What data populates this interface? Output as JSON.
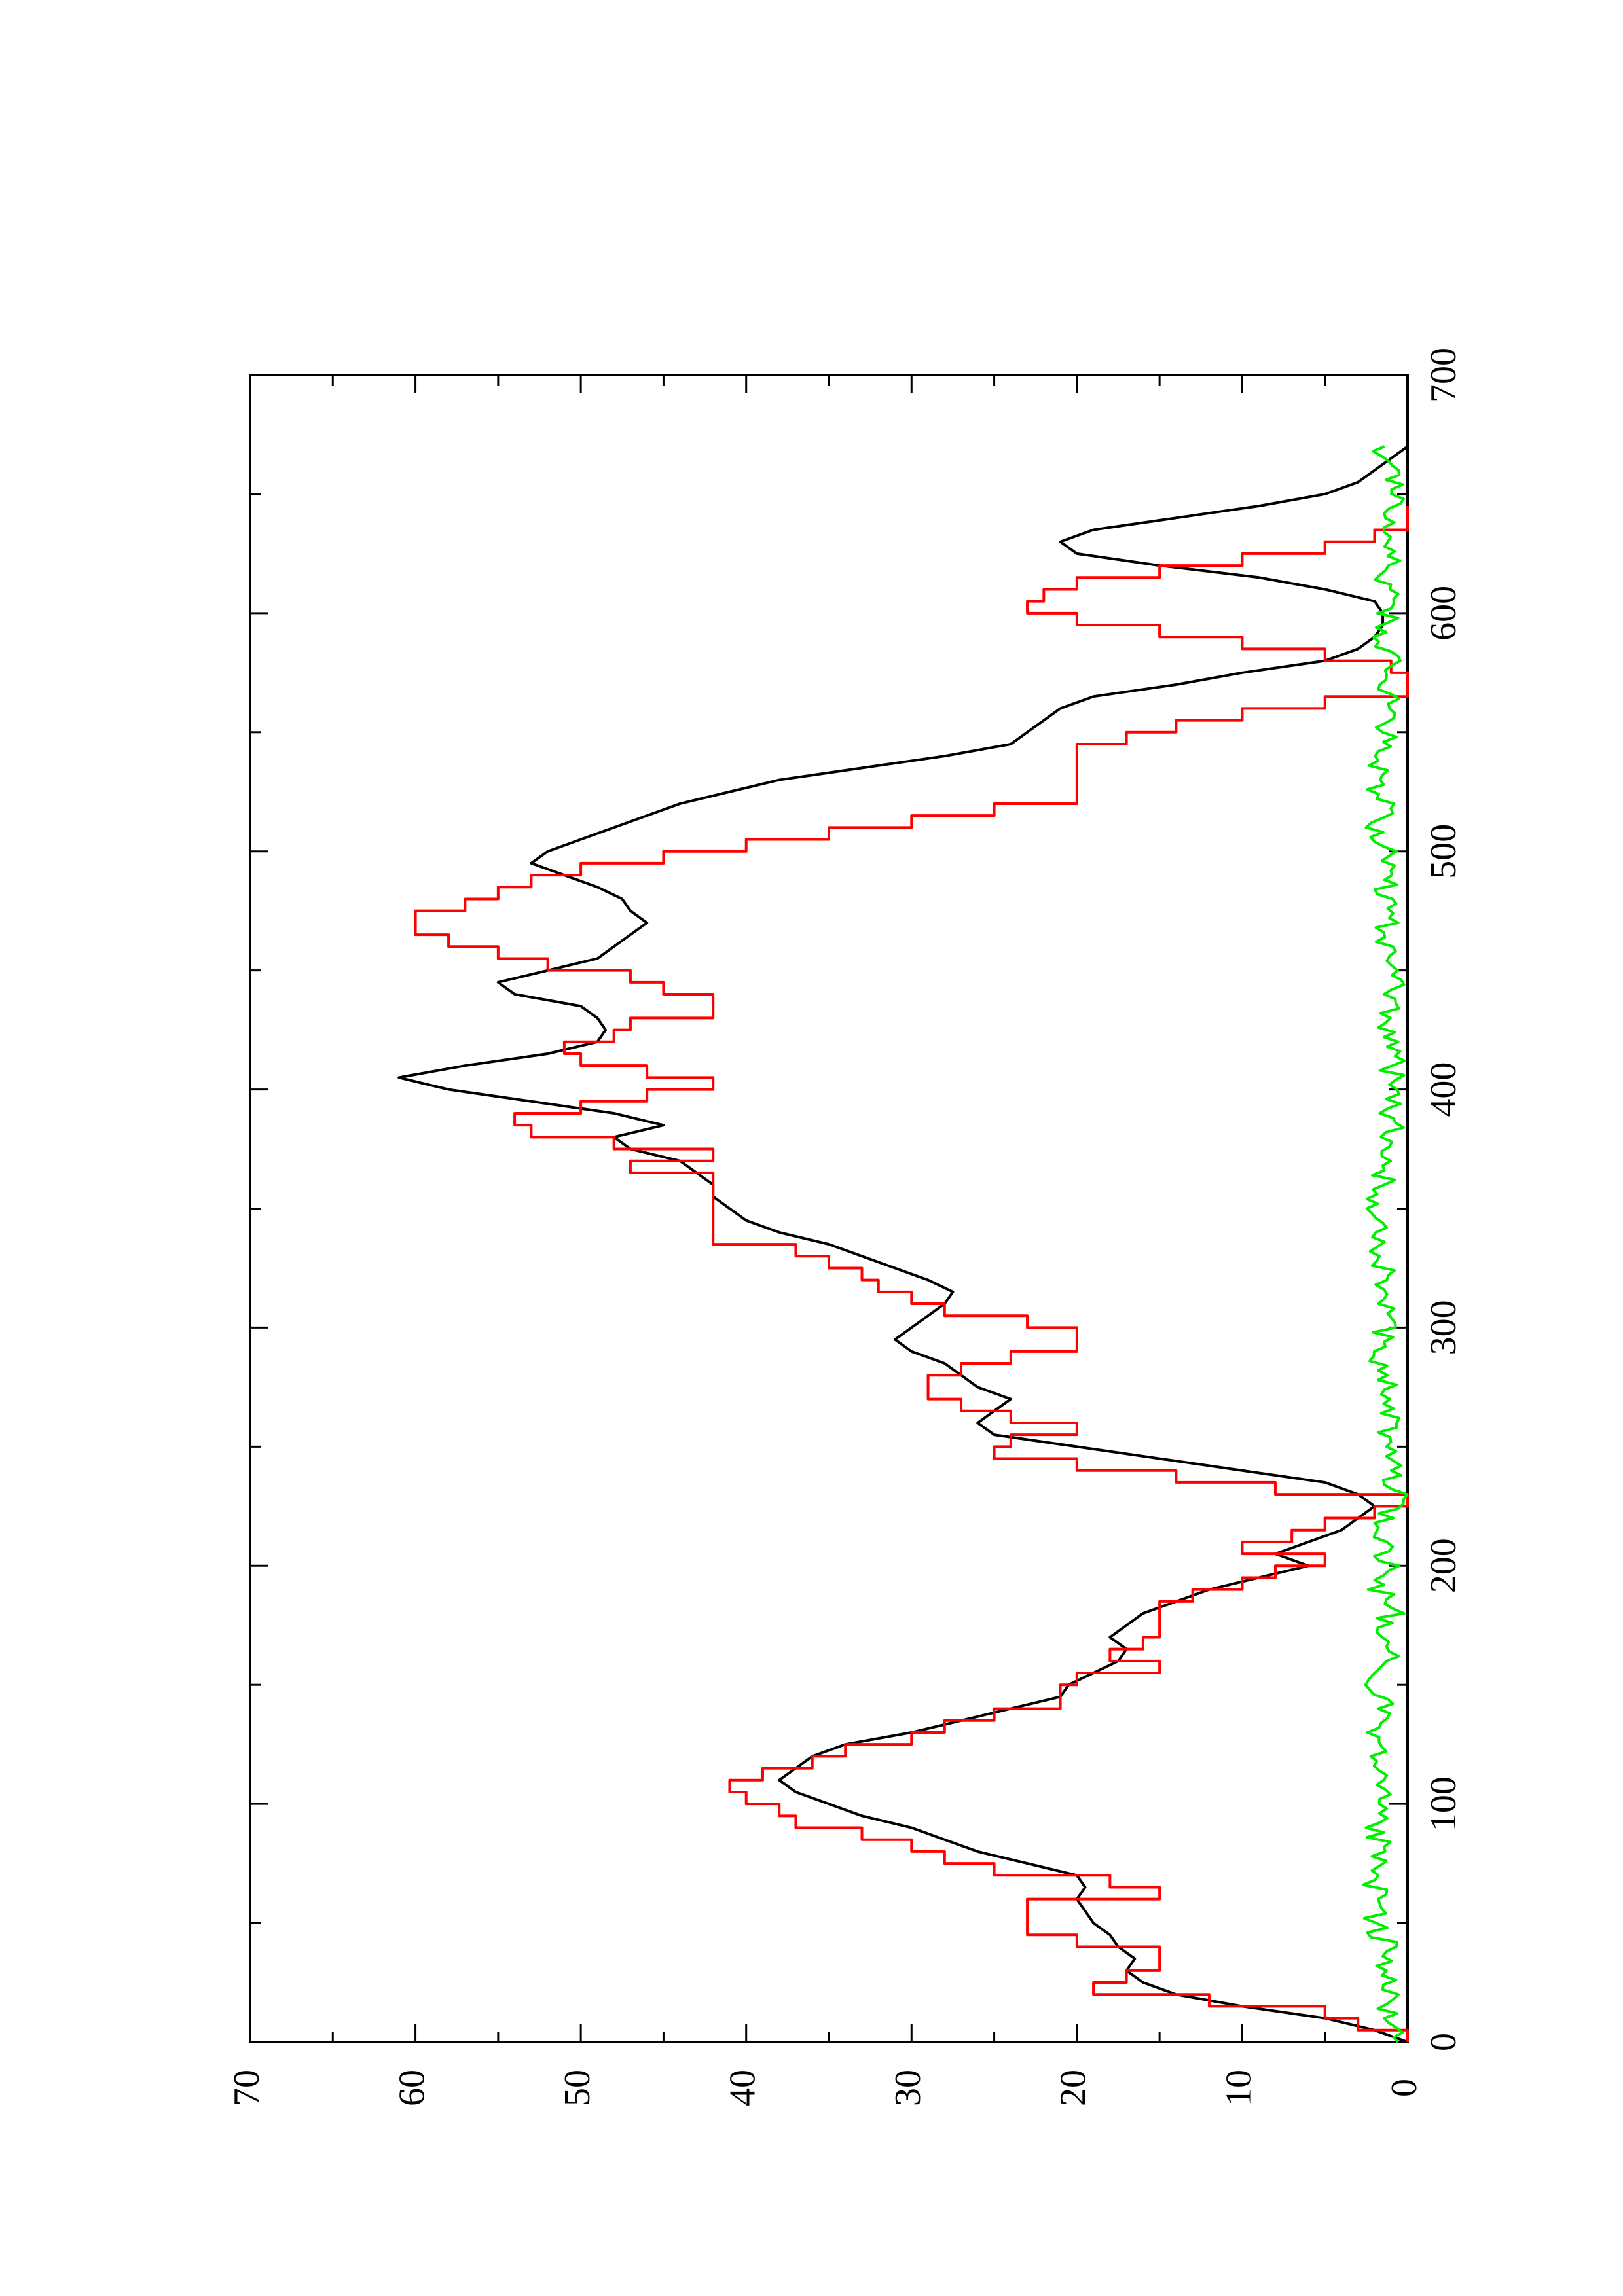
{
  "chart_data": {
    "type": "line",
    "orientation": "rotated-90",
    "title": "",
    "xlabel": "",
    "ylabel": "",
    "xlim": [
      0,
      700
    ],
    "ylim": [
      0,
      70
    ],
    "x_ticks": [
      0,
      100,
      200,
      300,
      400,
      500,
      600,
      700
    ],
    "y_ticks": [
      0,
      10,
      20,
      30,
      40,
      50,
      60,
      70
    ],
    "grid": false,
    "legend": "none",
    "series": [
      {
        "color": "#000000",
        "style": "smooth",
        "points": [
          [
            0,
            0
          ],
          [
            5,
            2
          ],
          [
            10,
            5
          ],
          [
            15,
            10
          ],
          [
            20,
            14
          ],
          [
            25,
            16
          ],
          [
            30,
            17
          ],
          [
            35,
            16.5
          ],
          [
            40,
            17.5
          ],
          [
            45,
            18
          ],
          [
            50,
            19
          ],
          [
            55,
            19.5
          ],
          [
            60,
            20
          ],
          [
            65,
            19.5
          ],
          [
            70,
            20
          ],
          [
            75,
            23
          ],
          [
            80,
            26
          ],
          [
            85,
            28
          ],
          [
            90,
            30
          ],
          [
            95,
            33
          ],
          [
            100,
            35
          ],
          [
            105,
            37
          ],
          [
            110,
            38
          ],
          [
            115,
            37
          ],
          [
            120,
            36
          ],
          [
            125,
            34
          ],
          [
            130,
            30
          ],
          [
            135,
            27
          ],
          [
            140,
            24
          ],
          [
            145,
            21
          ],
          [
            150,
            20.5
          ],
          [
            155,
            19
          ],
          [
            160,
            17.5
          ],
          [
            165,
            17
          ],
          [
            170,
            18
          ],
          [
            175,
            17
          ],
          [
            180,
            16
          ],
          [
            185,
            14
          ],
          [
            190,
            12
          ],
          [
            195,
            9
          ],
          [
            200,
            6
          ],
          [
            205,
            8
          ],
          [
            210,
            6
          ],
          [
            215,
            4
          ],
          [
            220,
            3
          ],
          [
            225,
            2
          ],
          [
            230,
            3
          ],
          [
            235,
            5
          ],
          [
            240,
            10
          ],
          [
            245,
            15
          ],
          [
            250,
            20
          ],
          [
            255,
            25
          ],
          [
            260,
            26
          ],
          [
            265,
            25
          ],
          [
            270,
            24
          ],
          [
            275,
            26
          ],
          [
            280,
            27
          ],
          [
            285,
            28
          ],
          [
            290,
            30
          ],
          [
            295,
            31
          ],
          [
            300,
            30
          ],
          [
            305,
            29
          ],
          [
            310,
            28
          ],
          [
            315,
            27.5
          ],
          [
            320,
            29
          ],
          [
            325,
            31
          ],
          [
            330,
            33
          ],
          [
            335,
            35
          ],
          [
            340,
            38
          ],
          [
            345,
            40
          ],
          [
            350,
            41
          ],
          [
            355,
            42
          ],
          [
            360,
            42
          ],
          [
            365,
            43
          ],
          [
            370,
            44
          ],
          [
            375,
            47
          ],
          [
            380,
            48
          ],
          [
            385,
            45
          ],
          [
            390,
            48
          ],
          [
            395,
            53
          ],
          [
            400,
            58
          ],
          [
            405,
            61
          ],
          [
            410,
            57
          ],
          [
            415,
            52
          ],
          [
            420,
            49
          ],
          [
            425,
            48.5
          ],
          [
            430,
            49
          ],
          [
            435,
            50
          ],
          [
            440,
            54
          ],
          [
            445,
            55
          ],
          [
            450,
            52
          ],
          [
            455,
            49
          ],
          [
            460,
            48
          ],
          [
            465,
            47
          ],
          [
            470,
            46
          ],
          [
            475,
            47
          ],
          [
            480,
            47.5
          ],
          [
            485,
            49
          ],
          [
            490,
            51
          ],
          [
            495,
            53
          ],
          [
            500,
            52
          ],
          [
            505,
            50
          ],
          [
            510,
            48
          ],
          [
            515,
            46
          ],
          [
            520,
            44
          ],
          [
            525,
            41
          ],
          [
            530,
            38
          ],
          [
            535,
            33
          ],
          [
            540,
            28
          ],
          [
            545,
            24
          ],
          [
            550,
            23
          ],
          [
            555,
            22
          ],
          [
            560,
            21
          ],
          [
            565,
            19
          ],
          [
            570,
            14
          ],
          [
            575,
            10
          ],
          [
            580,
            5
          ],
          [
            585,
            3
          ],
          [
            590,
            2
          ],
          [
            595,
            1.5
          ],
          [
            600,
            1.5
          ],
          [
            605,
            2
          ],
          [
            610,
            5
          ],
          [
            615,
            9
          ],
          [
            620,
            15
          ],
          [
            625,
            20
          ],
          [
            630,
            21
          ],
          [
            635,
            19
          ],
          [
            640,
            14
          ],
          [
            645,
            9
          ],
          [
            650,
            5
          ],
          [
            655,
            3
          ],
          [
            660,
            2
          ],
          [
            665,
            1
          ],
          [
            670,
            0
          ]
        ]
      },
      {
        "color": "#ff0000",
        "style": "step",
        "points": [
          [
            0,
            0
          ],
          [
            5,
            3
          ],
          [
            10,
            5
          ],
          [
            15,
            12
          ],
          [
            20,
            19
          ],
          [
            25,
            17
          ],
          [
            30,
            15
          ],
          [
            35,
            15
          ],
          [
            40,
            20
          ],
          [
            45,
            23
          ],
          [
            50,
            23
          ],
          [
            55,
            23
          ],
          [
            60,
            15
          ],
          [
            65,
            18
          ],
          [
            70,
            25
          ],
          [
            75,
            28
          ],
          [
            80,
            30
          ],
          [
            85,
            33
          ],
          [
            90,
            37
          ],
          [
            95,
            38
          ],
          [
            100,
            40
          ],
          [
            105,
            41
          ],
          [
            110,
            39
          ],
          [
            115,
            36
          ],
          [
            120,
            34
          ],
          [
            125,
            30
          ],
          [
            130,
            28
          ],
          [
            135,
            25
          ],
          [
            140,
            21
          ],
          [
            145,
            21
          ],
          [
            150,
            20
          ],
          [
            155,
            15
          ],
          [
            160,
            18
          ],
          [
            165,
            16
          ],
          [
            170,
            15
          ],
          [
            175,
            15
          ],
          [
            180,
            15
          ],
          [
            185,
            13
          ],
          [
            190,
            10
          ],
          [
            195,
            8
          ],
          [
            200,
            5
          ],
          [
            205,
            10
          ],
          [
            210,
            7
          ],
          [
            215,
            5
          ],
          [
            220,
            2
          ],
          [
            225,
            0
          ],
          [
            230,
            8
          ],
          [
            235,
            14
          ],
          [
            240,
            20
          ],
          [
            245,
            25
          ],
          [
            250,
            24
          ],
          [
            255,
            20
          ],
          [
            260,
            24
          ],
          [
            265,
            27
          ],
          [
            270,
            29
          ],
          [
            275,
            29
          ],
          [
            280,
            27
          ],
          [
            285,
            24
          ],
          [
            290,
            20
          ],
          [
            295,
            20
          ],
          [
            300,
            23
          ],
          [
            305,
            28
          ],
          [
            310,
            30
          ],
          [
            315,
            32
          ],
          [
            320,
            33
          ],
          [
            325,
            35
          ],
          [
            330,
            37
          ],
          [
            335,
            42
          ],
          [
            340,
            42
          ],
          [
            345,
            42
          ],
          [
            350,
            42
          ],
          [
            355,
            42
          ],
          [
            360,
            42
          ],
          [
            365,
            47
          ],
          [
            370,
            42
          ],
          [
            375,
            48
          ],
          [
            380,
            53
          ],
          [
            385,
            54
          ],
          [
            390,
            50
          ],
          [
            395,
            46
          ],
          [
            400,
            42
          ],
          [
            405,
            46
          ],
          [
            410,
            50
          ],
          [
            415,
            51
          ],
          [
            420,
            48
          ],
          [
            425,
            47
          ],
          [
            430,
            42
          ],
          [
            435,
            42
          ],
          [
            440,
            45
          ],
          [
            445,
            47
          ],
          [
            450,
            52
          ],
          [
            455,
            55
          ],
          [
            460,
            58
          ],
          [
            465,
            60
          ],
          [
            470,
            60
          ],
          [
            475,
            57
          ],
          [
            480,
            55
          ],
          [
            485,
            53
          ],
          [
            490,
            50
          ],
          [
            495,
            45
          ],
          [
            500,
            40
          ],
          [
            505,
            35
          ],
          [
            510,
            30
          ],
          [
            515,
            25
          ],
          [
            520,
            20
          ],
          [
            525,
            20
          ],
          [
            530,
            20
          ],
          [
            535,
            20
          ],
          [
            540,
            20
          ],
          [
            545,
            17
          ],
          [
            550,
            14
          ],
          [
            555,
            10
          ],
          [
            560,
            5
          ],
          [
            565,
            0
          ],
          [
            570,
            0
          ],
          [
            575,
            1
          ],
          [
            580,
            5
          ],
          [
            585,
            10
          ],
          [
            590,
            15
          ],
          [
            595,
            20
          ],
          [
            600,
            23
          ],
          [
            605,
            22
          ],
          [
            610,
            20
          ],
          [
            615,
            15
          ],
          [
            620,
            10
          ],
          [
            625,
            5
          ],
          [
            630,
            2
          ],
          [
            635,
            0
          ],
          [
            640,
            0
          ],
          [
            645,
            0
          ]
        ]
      },
      {
        "color": "#00ee00",
        "style": "noisy",
        "points": [
          [
            0,
            0.6
          ],
          [
            10,
            1.4
          ],
          [
            20,
            0.9
          ],
          [
            30,
            1.7
          ],
          [
            40,
            1.2
          ],
          [
            50,
            2.0
          ],
          [
            60,
            1.5
          ],
          [
            70,
            2.2
          ],
          [
            80,
            1.6
          ],
          [
            90,
            1.9
          ],
          [
            100,
            1.3
          ],
          [
            110,
            2.1
          ],
          [
            120,
            1.5
          ],
          [
            130,
            1.9
          ],
          [
            140,
            1.4
          ],
          [
            150,
            1.8
          ],
          [
            160,
            1.2
          ],
          [
            170,
            1.7
          ],
          [
            180,
            1.0
          ],
          [
            190,
            1.6
          ],
          [
            200,
            1.1
          ],
          [
            210,
            1.8
          ],
          [
            220,
            1.3
          ],
          [
            230,
            0.8
          ],
          [
            240,
            1.0
          ],
          [
            250,
            1.5
          ],
          [
            260,
            1.2
          ],
          [
            270,
            1.7
          ],
          [
            280,
            1.3
          ],
          [
            290,
            1.8
          ],
          [
            300,
            1.4
          ],
          [
            310,
            1.6
          ],
          [
            320,
            1.2
          ],
          [
            330,
            1.7
          ],
          [
            340,
            1.3
          ],
          [
            350,
            1.8
          ],
          [
            360,
            1.5
          ],
          [
            370,
            1.2
          ],
          [
            380,
            1.0
          ],
          [
            390,
            0.9
          ],
          [
            400,
            1.1
          ],
          [
            410,
            0.9
          ],
          [
            420,
            1.0
          ],
          [
            430,
            1.2
          ],
          [
            440,
            0.8
          ],
          [
            450,
            1.0
          ],
          [
            460,
            1.6
          ],
          [
            470,
            1.2
          ],
          [
            480,
            1.5
          ],
          [
            490,
            1.3
          ],
          [
            500,
            1.1
          ],
          [
            510,
            1.8
          ],
          [
            520,
            1.4
          ],
          [
            530,
            1.9
          ],
          [
            540,
            1.5
          ],
          [
            550,
            1.2
          ],
          [
            560,
            1.0
          ],
          [
            570,
            1.3
          ],
          [
            580,
            1.1
          ],
          [
            590,
            1.4
          ],
          [
            600,
            1.2
          ],
          [
            610,
            1.3
          ],
          [
            620,
            1.1
          ],
          [
            630,
            1.5
          ],
          [
            640,
            1.2
          ],
          [
            650,
            1.0
          ],
          [
            660,
            1.2
          ],
          [
            670,
            1.4
          ]
        ]
      }
    ]
  }
}
